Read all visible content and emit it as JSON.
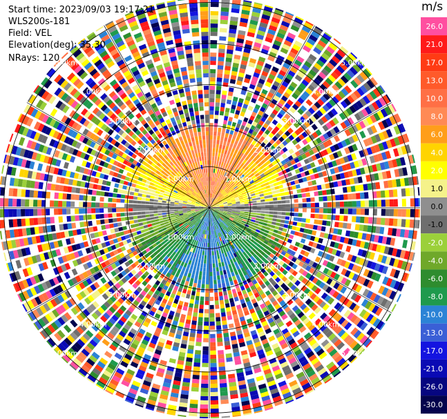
{
  "info": {
    "start_time": "Start time: 2023/09/03 19:17:21",
    "instrument": "WLS200s-181",
    "field": "Field: VEL",
    "elevation": "Elevation(deg): 35.30",
    "nrays": "NRays: 120"
  },
  "colorbar": {
    "unit": "m/s",
    "bins": [
      {
        "label": "26.0",
        "color": "#ff4fa0"
      },
      {
        "label": "21.0",
        "color": "#ff1a1a"
      },
      {
        "label": "17.0",
        "color": "#ff3b14"
      },
      {
        "label": "13.0",
        "color": "#ff5a2a"
      },
      {
        "label": "10.0",
        "color": "#ff6f45"
      },
      {
        "label": "8.0",
        "color": "#ff8a55"
      },
      {
        "label": "6.0",
        "color": "#ff9e1a"
      },
      {
        "label": "4.0",
        "color": "#ffd400"
      },
      {
        "label": "2.0",
        "color": "#ffff00"
      },
      {
        "label": "1.0",
        "color": "#f5f28a"
      },
      {
        "label": "0.0",
        "color": "#8f8f8f"
      },
      {
        "label": "-1.0",
        "color": "#6e6e6e"
      },
      {
        "label": "-2.0",
        "color": "#9bd03a"
      },
      {
        "label": "-4.0",
        "color": "#6fa82a"
      },
      {
        "label": "-6.0",
        "color": "#2e8c2e"
      },
      {
        "label": "-8.0",
        "color": "#1f9a4d"
      },
      {
        "label": "-10.0",
        "color": "#2b83d6"
      },
      {
        "label": "-13.0",
        "color": "#3a5fd6"
      },
      {
        "label": "-17.0",
        "color": "#1414e0"
      },
      {
        "label": "-21.0",
        "color": "#0a0ab4"
      },
      {
        "label": "-26.0",
        "color": "#060680"
      },
      {
        "label": "-30.0",
        "color": "#03034d"
      }
    ]
  },
  "ring_labels": [
    "1.00km",
    "2.00km",
    "3.00km",
    "4.00km",
    "5.00km"
  ],
  "chart_data": {
    "type": "heatmap",
    "projection": "polar PPI",
    "field": "VEL",
    "unit": "m/s",
    "elevation_deg": 35.3,
    "nrays": 120,
    "range_rings_km": [
      1.0,
      2.0,
      3.0,
      4.0,
      5.0
    ],
    "color_levels": [
      26.0,
      21.0,
      17.0,
      13.0,
      10.0,
      8.0,
      6.0,
      4.0,
      2.0,
      1.0,
      0.0,
      -1.0,
      -2.0,
      -4.0,
      -6.0,
      -8.0,
      -10.0,
      -13.0,
      -17.0,
      -21.0,
      -26.0,
      -30.0
    ],
    "coherent_region_km": 1.9,
    "pattern": "positive velocities (orange/yellow) to the north, negative (green/blue) to the south, noise beyond ~2 km"
  }
}
